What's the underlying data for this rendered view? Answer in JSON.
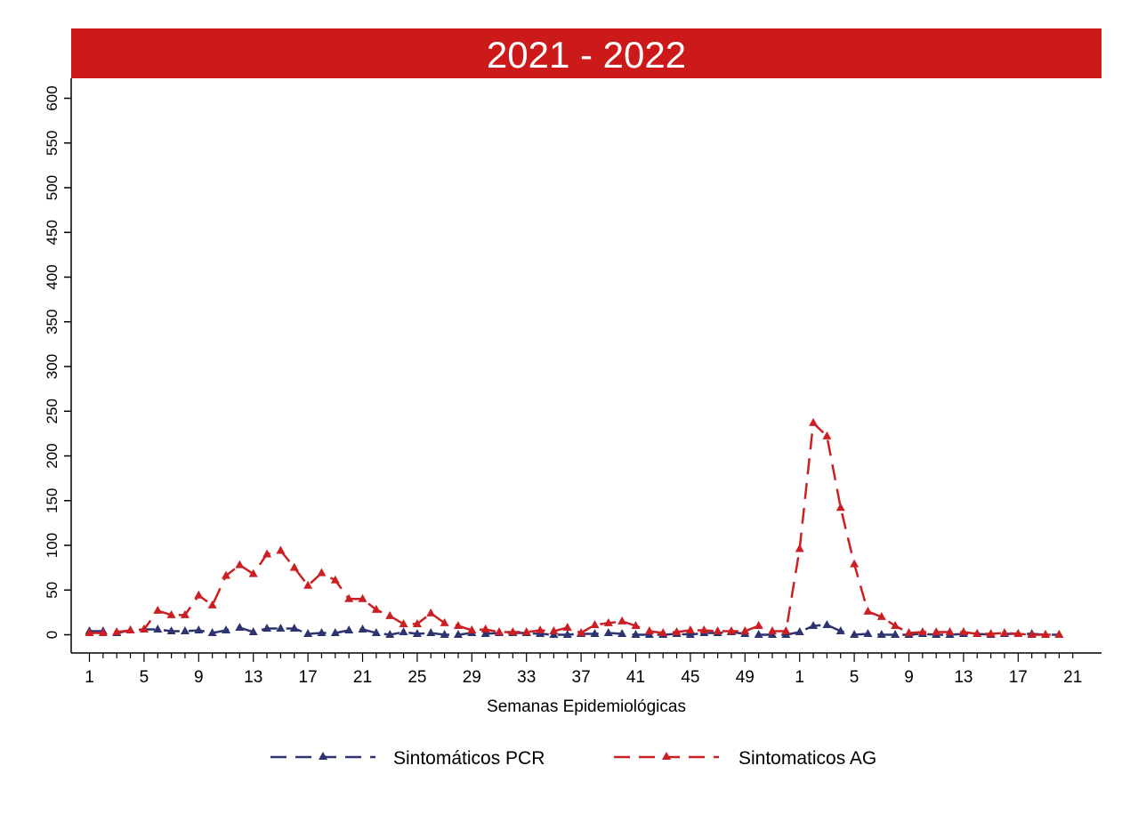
{
  "colors": {
    "banner": "#cc1a1a",
    "pcr": "#2e3470",
    "ag": "#cc1f24"
  },
  "chart_data": {
    "type": "line",
    "title": "2021 - 2022",
    "xlabel": "Semanas Epidemiológicas",
    "ylabel": "",
    "ylim": [
      0,
      600
    ],
    "yticks": [
      0,
      50,
      100,
      150,
      200,
      250,
      300,
      350,
      400,
      450,
      500,
      550,
      600
    ],
    "xtick_labels": [
      "1",
      "5",
      "9",
      "13",
      "17",
      "21",
      "25",
      "29",
      "33",
      "37",
      "41",
      "45",
      "49",
      "1",
      "5",
      "9",
      "13",
      "17",
      "21"
    ],
    "x": [
      "2021-1",
      "2021-2",
      "2021-3",
      "2021-4",
      "2021-5",
      "2021-6",
      "2021-7",
      "2021-8",
      "2021-9",
      "2021-10",
      "2021-11",
      "2021-12",
      "2021-13",
      "2021-14",
      "2021-15",
      "2021-16",
      "2021-17",
      "2021-18",
      "2021-19",
      "2021-20",
      "2021-21",
      "2021-22",
      "2021-23",
      "2021-24",
      "2021-25",
      "2021-26",
      "2021-27",
      "2021-28",
      "2021-29",
      "2021-30",
      "2021-31",
      "2021-32",
      "2021-33",
      "2021-34",
      "2021-35",
      "2021-36",
      "2021-37",
      "2021-38",
      "2021-39",
      "2021-40",
      "2021-41",
      "2021-42",
      "2021-43",
      "2021-44",
      "2021-45",
      "2021-46",
      "2021-47",
      "2021-48",
      "2021-49",
      "2021-50",
      "2021-51",
      "2021-52",
      "2022-1",
      "2022-2",
      "2022-3",
      "2022-4",
      "2022-5",
      "2022-6",
      "2022-7",
      "2022-8",
      "2022-9",
      "2022-10",
      "2022-11",
      "2022-12",
      "2022-13",
      "2022-14",
      "2022-15",
      "2022-16",
      "2022-17",
      "2022-18",
      "2022-19",
      "2022-20"
    ],
    "series": [
      {
        "name": "Sintomáticos PCR",
        "style": "dashed",
        "marker": "triangle",
        "values": [
          4,
          4,
          2,
          5,
          6,
          6,
          4,
          4,
          5,
          2,
          5,
          8,
          3,
          7,
          7,
          7,
          1,
          2,
          2,
          5,
          6,
          2,
          0,
          3,
          1,
          2,
          0,
          0,
          2,
          1,
          2,
          2,
          2,
          1,
          0,
          0,
          1,
          1,
          2,
          1,
          0,
          0,
          0,
          1,
          0,
          2,
          2,
          3,
          1,
          0,
          0,
          0,
          3,
          10,
          11,
          4,
          0,
          1,
          0,
          0,
          0,
          1,
          0,
          0,
          1,
          1,
          0,
          1,
          1,
          1,
          0,
          0
        ]
      },
      {
        "name": "Sintomaticos AG",
        "style": "dashed",
        "marker": "triangle",
        "values": [
          2,
          2,
          3,
          5,
          6,
          27,
          22,
          22,
          44,
          33,
          66,
          78,
          68,
          90,
          94,
          75,
          55,
          69,
          61,
          40,
          40,
          28,
          21,
          12,
          12,
          24,
          13,
          10,
          5,
          6,
          3,
          3,
          3,
          5,
          4,
          8,
          2,
          11,
          13,
          15,
          10,
          4,
          2,
          3,
          5,
          5,
          4,
          4,
          4,
          10,
          4,
          4,
          96,
          237,
          222,
          142,
          79,
          26,
          20,
          10,
          2,
          3,
          3,
          3,
          3,
          1,
          1,
          2,
          1,
          0,
          0,
          0
        ]
      }
    ],
    "legend": "bottom"
  }
}
